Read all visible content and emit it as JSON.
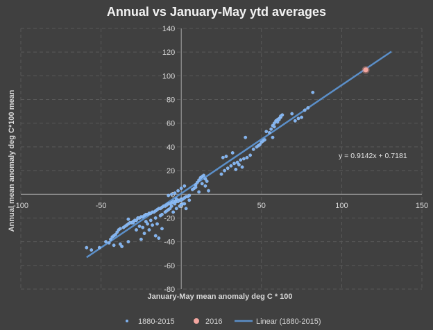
{
  "chart_data": {
    "type": "scatter",
    "title": "Annual vs  January-May ytd averages",
    "xlabel": "January-May mean anomaly deg C * 100",
    "ylabel": "Annual mean  anomaly deg C*100 mean",
    "xlim": [
      -100,
      150
    ],
    "ylim": [
      -80,
      140
    ],
    "x_ticks": [
      "-100",
      "-50",
      "0",
      "50",
      "100",
      "150"
    ],
    "y_ticks": [
      "-80",
      "-60",
      "-40",
      "-20",
      "0",
      "20",
      "40",
      "60",
      "80",
      "100",
      "120",
      "140"
    ],
    "colors": {
      "background": "#404040",
      "grid": "#595959",
      "axis": "#a6a6a6",
      "series": "#7fb2f0",
      "highlight": "#f4a6a0",
      "trend": "#5b8fc9"
    },
    "series": [
      {
        "name": "1880-2015",
        "x": [
          -59,
          -56,
          -51,
          -47,
          -45,
          -44,
          -43,
          -42,
          -41,
          -40,
          -39,
          -38,
          -42,
          -37,
          -36,
          -35,
          -34,
          -33,
          -32,
          -31,
          -30,
          -29,
          -28,
          -27,
          -26,
          -25,
          -24,
          -23,
          -22,
          -21,
          -20,
          -19,
          -18,
          -17,
          -16,
          -15,
          -14,
          -13,
          -12,
          -11,
          -10,
          -9,
          -8,
          -7,
          -6,
          -5,
          -4,
          -3,
          -2,
          -1,
          0,
          1,
          2,
          3,
          4,
          5,
          -28,
          -24,
          -21,
          -19,
          -16,
          -13,
          -10,
          -8,
          -6,
          -4,
          -2,
          0,
          -33,
          -30,
          -26,
          -22,
          -18,
          -15,
          -12,
          -9,
          -7,
          -5,
          -3,
          -1,
          1,
          3,
          -20,
          -16,
          -12,
          -23,
          -14,
          -38,
          -33,
          -25,
          -27,
          8,
          9,
          10,
          11,
          12,
          13,
          14,
          15,
          16,
          7,
          9,
          11,
          13,
          15,
          17,
          -5,
          -3,
          0,
          2,
          5,
          25,
          27,
          29,
          31,
          33,
          35,
          37,
          39,
          41,
          43,
          28,
          32,
          36,
          38,
          40,
          26,
          34,
          45,
          47,
          48,
          49,
          50,
          51,
          52,
          55,
          56,
          57,
          58,
          59,
          60,
          61,
          62,
          63,
          53,
          57,
          69,
          71,
          73,
          75,
          77,
          79,
          82,
          58,
          60,
          61,
          62,
          -8,
          -6,
          -4,
          -2,
          0,
          2
        ],
        "y": [
          -45,
          -47,
          -45,
          -40,
          -41,
          -38,
          -36,
          -35,
          -34,
          -32,
          -30,
          -29,
          -43,
          -44,
          -28,
          -27,
          -26,
          -25,
          -24,
          -24,
          -23,
          -22,
          -22,
          -20,
          -20,
          -19,
          -19,
          -18,
          -17,
          -17,
          -16,
          -16,
          -15,
          -15,
          -14,
          -13,
          -12,
          -12,
          -11,
          -10,
          -10,
          -9,
          -8,
          -8,
          -7,
          -7,
          -6,
          -6,
          -5,
          -5,
          -4,
          -4,
          -3,
          -2,
          -2,
          -1,
          -30,
          -28,
          -25,
          -22,
          -20,
          -18,
          -15,
          -13,
          -10,
          -8,
          -6,
          -5,
          -21,
          -24,
          -27,
          -23,
          -26,
          -25,
          -17,
          -14,
          -12,
          -6,
          -4,
          -10,
          -8,
          -12,
          -30,
          -35,
          -29,
          -33,
          -37,
          -42,
          -40,
          -38,
          -20,
          5,
          8,
          10,
          12,
          14,
          15,
          16,
          13,
          11,
          4,
          6,
          2,
          9,
          7,
          3,
          -15,
          -12,
          -9,
          -8,
          -5,
          17,
          20,
          22,
          24,
          26,
          27,
          29,
          30,
          31,
          33,
          32,
          35,
          25,
          23,
          48,
          31,
          21,
          38,
          40,
          41,
          42,
          44,
          45,
          46,
          52,
          55,
          58,
          60,
          62,
          63,
          64,
          65,
          67,
          53,
          48,
          68,
          62,
          64,
          65,
          71,
          73,
          86,
          57,
          61,
          63,
          66,
          -1,
          0,
          1,
          3,
          5,
          7
        ]
      },
      {
        "name": "2016",
        "x": [
          115
        ],
        "y": [
          105
        ]
      }
    ],
    "trendline": {
      "name": "Linear (1880-2015)",
      "slope": 0.9142,
      "intercept": 0.7181,
      "x_range": [
        -59,
        131
      ],
      "equation_label": "y = 0.9142x + 0.7181"
    },
    "legend": {
      "position": "bottom",
      "items": [
        "1880-2015",
        "2016",
        "Linear (1880-2015)"
      ]
    }
  }
}
